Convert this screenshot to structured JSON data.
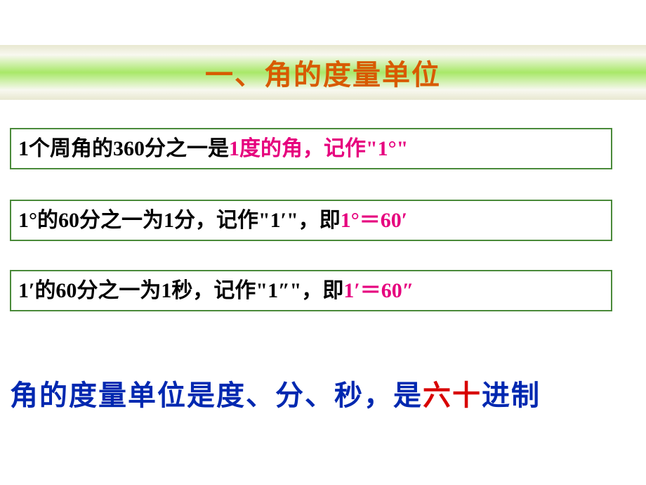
{
  "title": "一、角的度量单位",
  "box1": {
    "pre": "1个周角的360分之一是",
    "accent": "1度的角，记作\"1°\""
  },
  "box2": {
    "pre": "1°的60分之一为1分，记作\"1′\"，即",
    "accent": "1°＝60′"
  },
  "box3": {
    "pre": "1′的60分之一为1秒，记作\"1″\"，即",
    "accent": "1′＝60″"
  },
  "summary": {
    "blue_a": "角的度量单位是度、分、秒，是",
    "red": "六十",
    "blue_b": "进制"
  }
}
